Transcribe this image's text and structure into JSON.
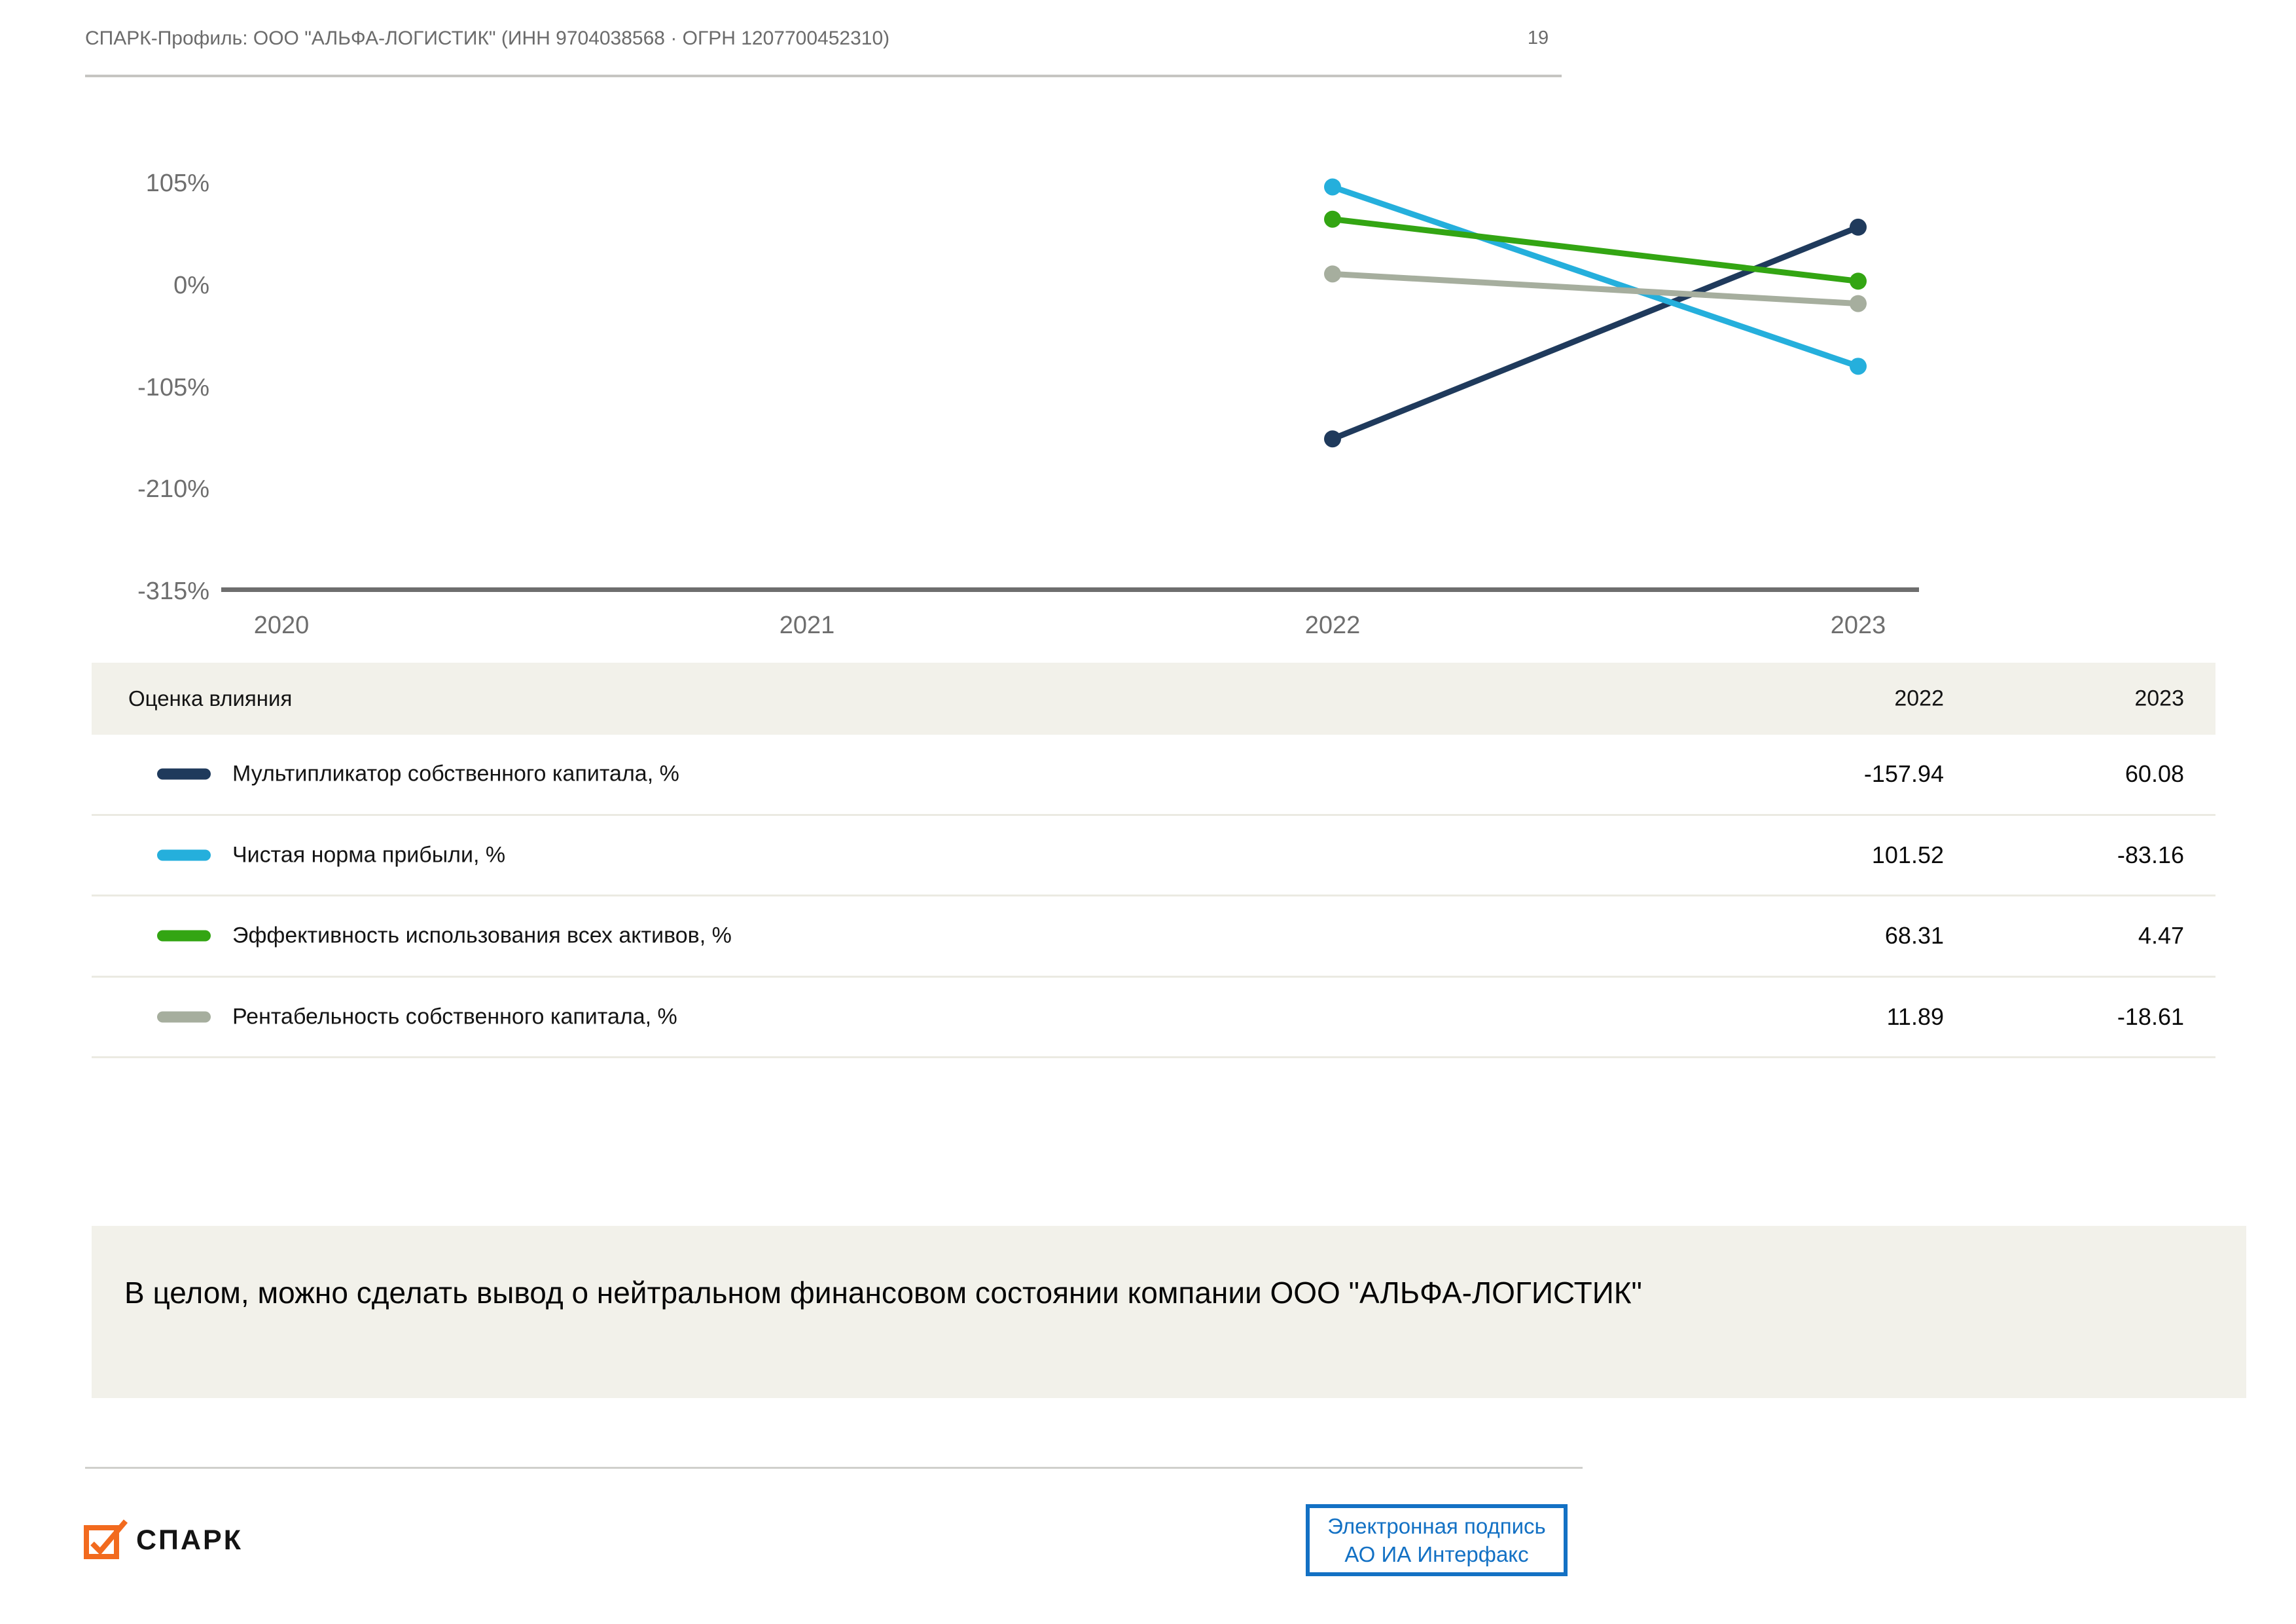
{
  "header": {
    "title": "СПАРК-Профиль: ООО \"АЛЬФА-ЛОГИСТИК\" (ИНН 9704038568 · ОГРН 1207700452310)",
    "page_number": "19"
  },
  "chart_data": {
    "type": "line",
    "x": [
      2020,
      2021,
      2022,
      2023
    ],
    "x_tick_labels": [
      "2020",
      "2021",
      "2022",
      "2023"
    ],
    "y_ticks": [
      105,
      0,
      -105,
      -210,
      -315
    ],
    "y_tick_labels": [
      "105%",
      "0%",
      "-105%",
      "-210%",
      "-315%"
    ],
    "ylim": [
      -315,
      105
    ],
    "grid": "off",
    "legend_position": "table-below",
    "series": [
      {
        "name": "Мультипликатор собственного капитала, %",
        "color": "#1f3a5c",
        "points": [
          {
            "x": 2022,
            "y": -157.94
          },
          {
            "x": 2023,
            "y": 60.08
          }
        ]
      },
      {
        "name": "Чистая норма прибыли, %",
        "color": "#25afdc",
        "points": [
          {
            "x": 2022,
            "y": 101.52
          },
          {
            "x": 2023,
            "y": -83.16
          }
        ]
      },
      {
        "name": "Эффективность использования всех активов, %",
        "color": "#33a513",
        "points": [
          {
            "x": 2022,
            "y": 68.31
          },
          {
            "x": 2023,
            "y": 4.47
          }
        ]
      },
      {
        "name": "Рентабельность собственного капитала, %",
        "color": "#a6ae9e",
        "points": [
          {
            "x": 2022,
            "y": 11.89
          },
          {
            "x": 2023,
            "y": -18.61
          }
        ]
      }
    ]
  },
  "table": {
    "title": "Оценка влияния",
    "columns": [
      "2022",
      "2023"
    ],
    "rows": [
      {
        "label": "Мультипликатор собственного капитала, %",
        "color": "#1f3a5c",
        "values": [
          "-157.94",
          "60.08"
        ]
      },
      {
        "label": "Чистая норма прибыли, %",
        "color": "#25afdc",
        "values": [
          "101.52",
          "-83.16"
        ]
      },
      {
        "label": "Эффективность использования всех активов, %",
        "color": "#33a513",
        "values": [
          "68.31",
          "4.47"
        ]
      },
      {
        "label": "Рентабельность собственного капитала, %",
        "color": "#a6ae9e",
        "values": [
          "11.89",
          "-18.61"
        ]
      }
    ]
  },
  "summary": {
    "text": "В целом, можно сделать вывод о нейтральном финансовом состоянии компании ООО \"АЛЬФА-ЛОГИСТИК\""
  },
  "footer": {
    "logo_text": "СПАРК",
    "signature_line1": "Электронная подпись",
    "signature_line2": "АО ИА Интерфакс"
  },
  "colors": {
    "accent_blue": "#1371c4",
    "logo_orange": "#f26a1e",
    "panel_beige": "#f2f1ea",
    "axis_gray": "#6e6e6e",
    "rule_gray": "#c6c5c2"
  }
}
